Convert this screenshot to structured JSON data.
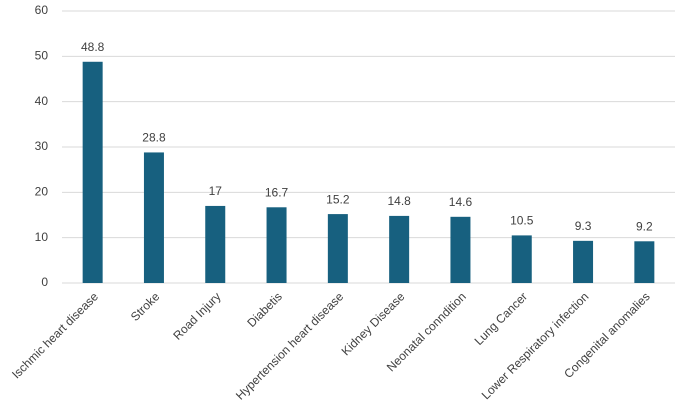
{
  "chart_data": {
    "type": "bar",
    "categories": [
      "Ischmic heart disease",
      "Stroke",
      "Road Injury",
      "Diabetis",
      "Hypertension heart disease",
      "Kidney Disease",
      "Neonatal conndition",
      "Lung Cancer",
      "Lower Respiratory infection",
      "Congenital anomalies"
    ],
    "values": [
      48.8,
      28.8,
      17,
      16.7,
      15.2,
      14.8,
      14.6,
      10.5,
      9.3,
      9.2
    ],
    "color": "#17607f",
    "ylim": [
      0,
      60
    ],
    "yticks": [
      0,
      10,
      20,
      30,
      40,
      50,
      60
    ],
    "grid": true
  }
}
